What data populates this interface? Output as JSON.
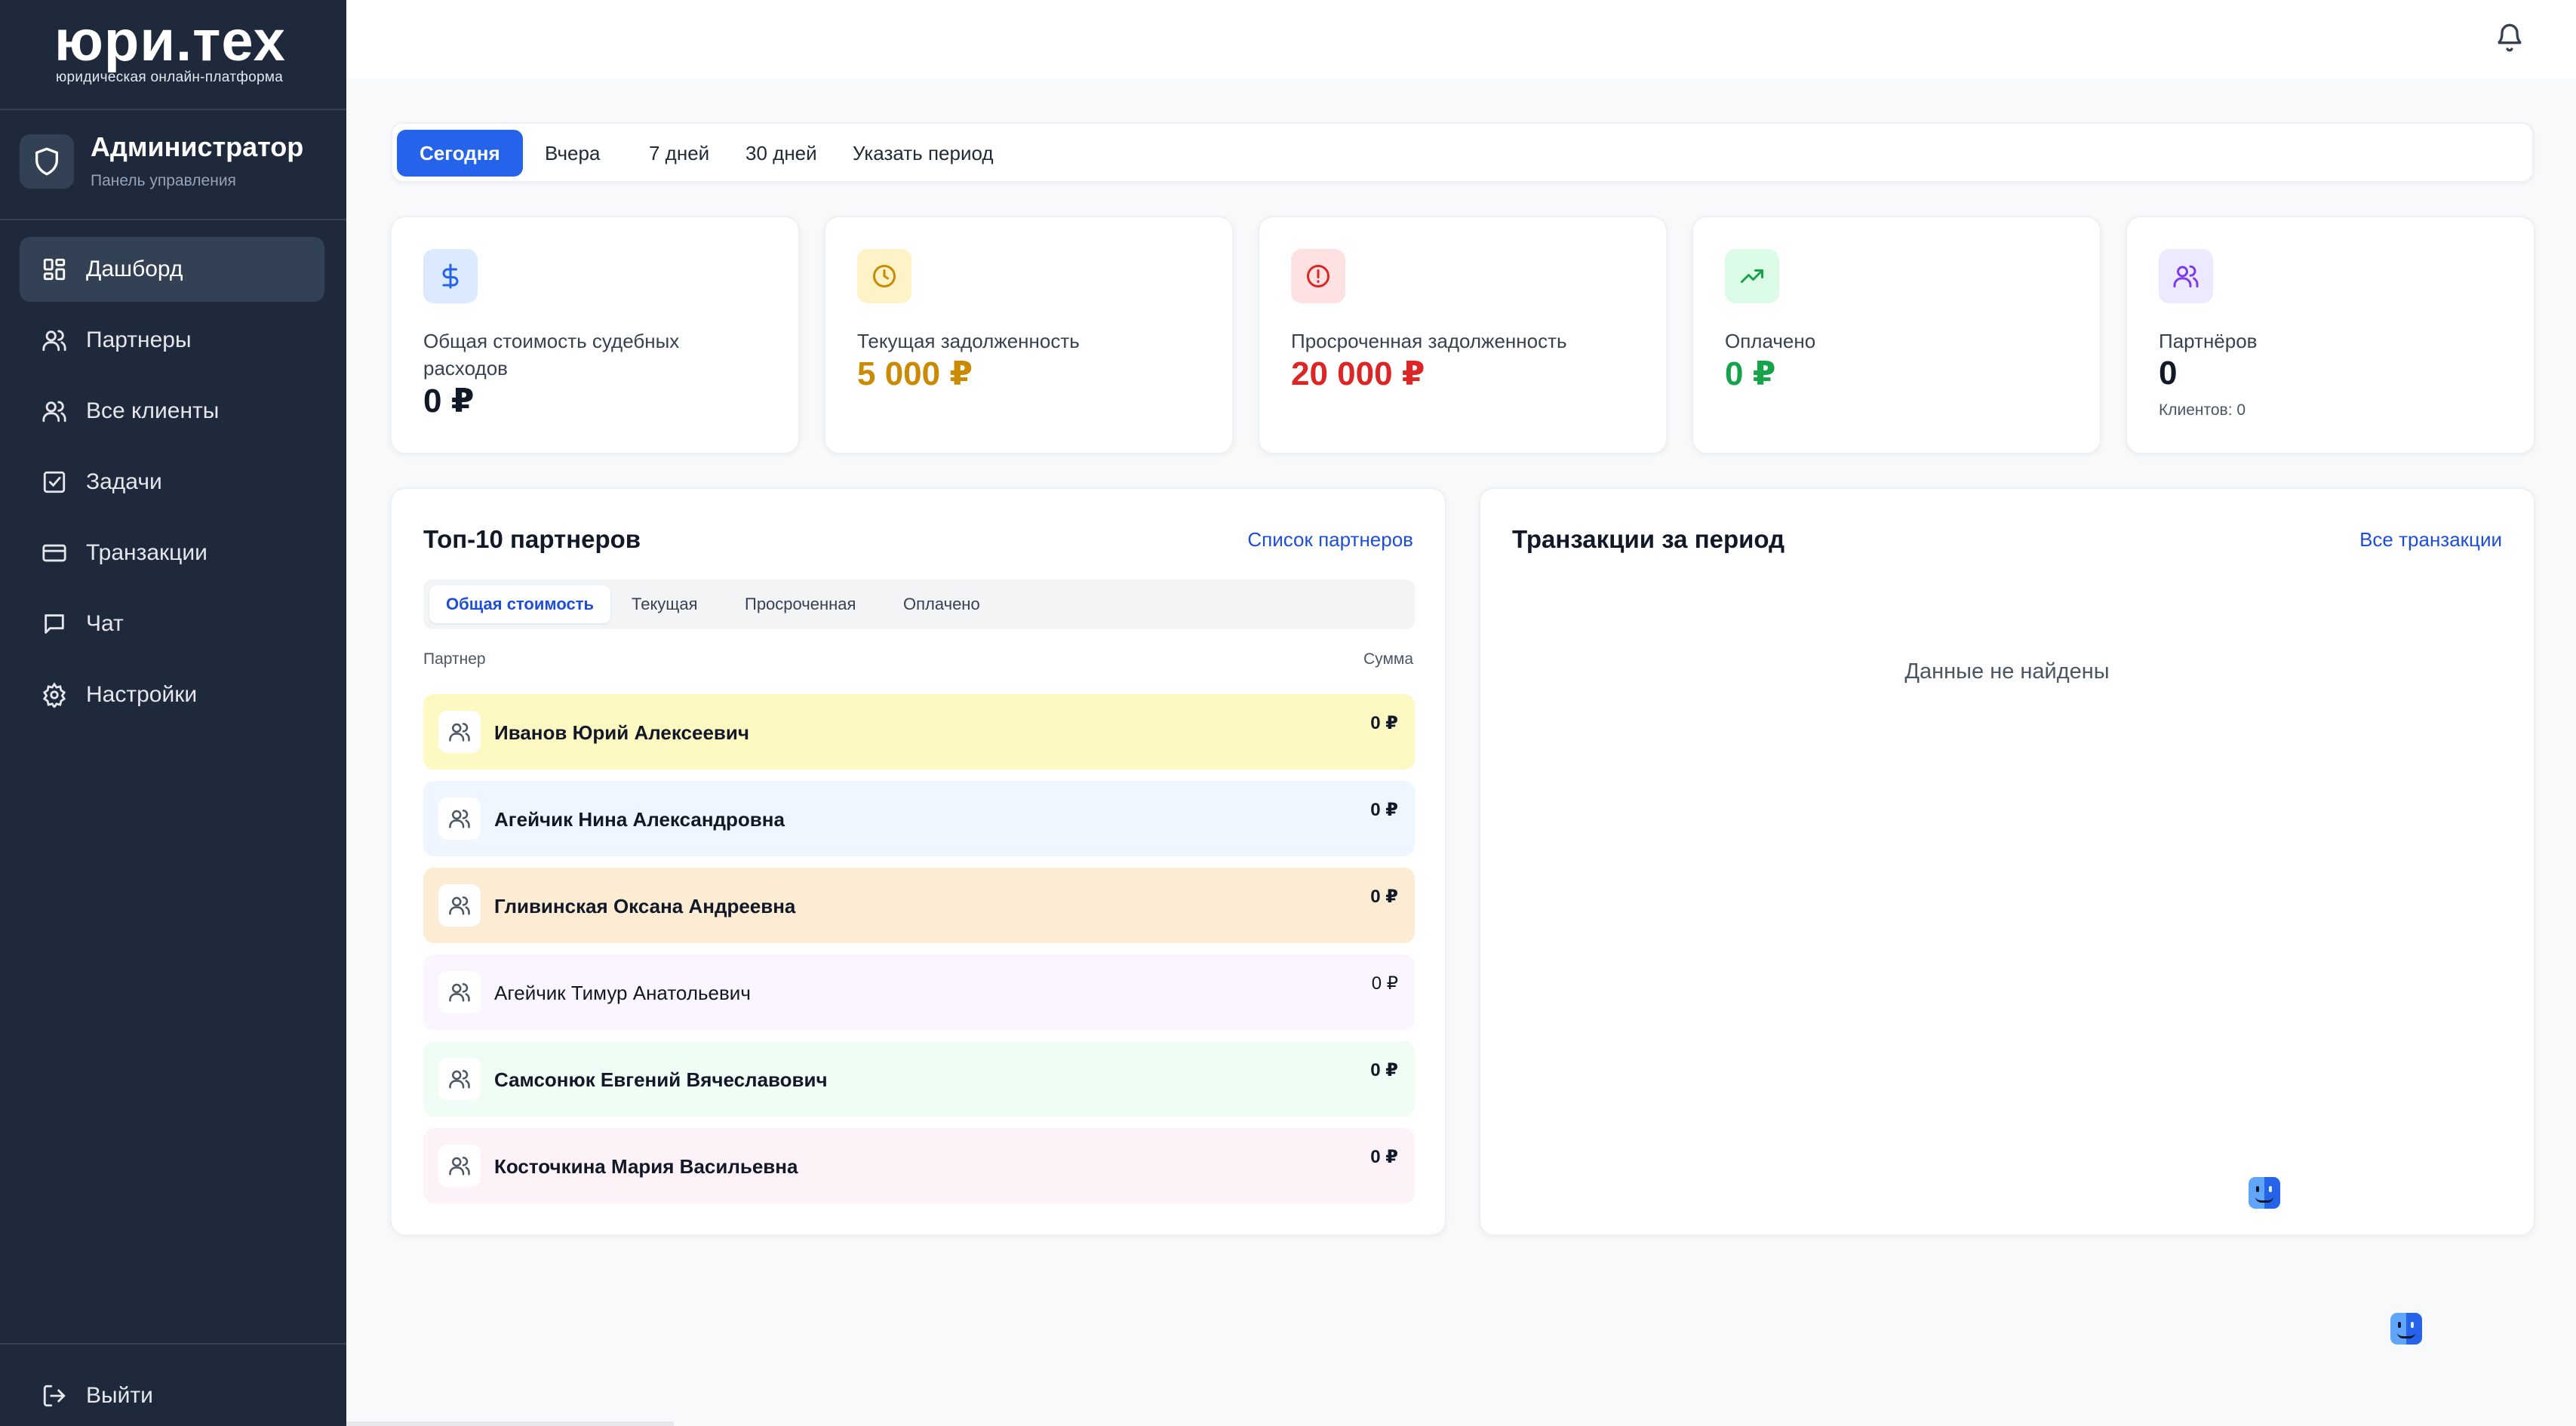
{
  "brand": {
    "logo": "юри.тех",
    "tagline": "юридическая онлайн-платформа"
  },
  "admin": {
    "title": "Администратор",
    "subtitle": "Панель управления"
  },
  "nav": {
    "items": [
      {
        "label": "Дашборд",
        "icon": "dashboard-icon",
        "active": true
      },
      {
        "label": "Партнеры",
        "icon": "users-icon"
      },
      {
        "label": "Все клиенты",
        "icon": "users-icon"
      },
      {
        "label": "Задачи",
        "icon": "checkbox-icon"
      },
      {
        "label": "Транзакции",
        "icon": "credit-card-icon"
      },
      {
        "label": "Чат",
        "icon": "chat-icon"
      },
      {
        "label": "Настройки",
        "icon": "gear-icon"
      }
    ],
    "logout": "Выйти"
  },
  "period_tabs": [
    {
      "label": "Сегодня",
      "active": true
    },
    {
      "label": "Вчера"
    },
    {
      "label": "7 дней"
    },
    {
      "label": "30 дней"
    },
    {
      "label": "Указать период"
    }
  ],
  "stats": [
    {
      "label": "Общая стоимость судебных расходов",
      "value": "0 ₽",
      "color": "#111827",
      "icon": "dollar-icon",
      "icon_bg": "#dbeafe",
      "icon_color": "#2563eb"
    },
    {
      "label": "Текущая задолженность",
      "value": "5 000 ₽",
      "color": "#ca8a04",
      "icon": "clock-icon",
      "icon_bg": "#fef3c7",
      "icon_color": "#ca8a04"
    },
    {
      "label": "Просроченная задолженность",
      "value": "20 000 ₽",
      "color": "#dc2626",
      "icon": "alert-icon",
      "icon_bg": "#fee2e2",
      "icon_color": "#dc2626"
    },
    {
      "label": "Оплачено",
      "value": "0 ₽",
      "color": "#16a34a",
      "icon": "trending-up-icon",
      "icon_bg": "#dcfce7",
      "icon_color": "#16a34a"
    },
    {
      "label": "Партнёров",
      "value": "0",
      "color": "#111827",
      "icon": "users-icon",
      "icon_bg": "#ede9fe",
      "icon_color": "#7c3aed",
      "sub": "Клиентов: 0"
    }
  ],
  "partners": {
    "title": "Топ-10 партнеров",
    "link": "Список партнеров",
    "tabs": [
      {
        "label": "Общая стоимость",
        "active": true
      },
      {
        "label": "Текущая"
      },
      {
        "label": "Просроченная"
      },
      {
        "label": "Оплачено"
      }
    ],
    "col_partner": "Партнер",
    "col_amount": "Сумма",
    "rows": [
      {
        "name": "Иванов Юрий Алексеевич",
        "amount": "0 ₽",
        "bg": "#fef9c3"
      },
      {
        "name": "Агейчик Нина Александровна",
        "amount": "0 ₽",
        "bg": "#eff6ff"
      },
      {
        "name": "Гливинская Оксана Андреевна",
        "amount": "0 ₽",
        "bg": "#fdecd4"
      },
      {
        "name": "Агейчик Тимур Анатольевич",
        "amount": "0 ₽",
        "bg": "#faf5ff"
      },
      {
        "name": "Самсонюк Евгений Вячеславович",
        "amount": "0 ₽",
        "bg": "#f0fdf4"
      },
      {
        "name": "Косточкина Мария Васильевна",
        "amount": "0 ₽",
        "bg": "#fdf2f8"
      }
    ]
  },
  "transactions": {
    "title": "Транзакции за период",
    "link": "Все транзакции",
    "empty": "Данные не найдены"
  },
  "colors": {
    "sidebar": "#1e293b",
    "accent": "#2563eb",
    "link": "#1d4ed8"
  }
}
